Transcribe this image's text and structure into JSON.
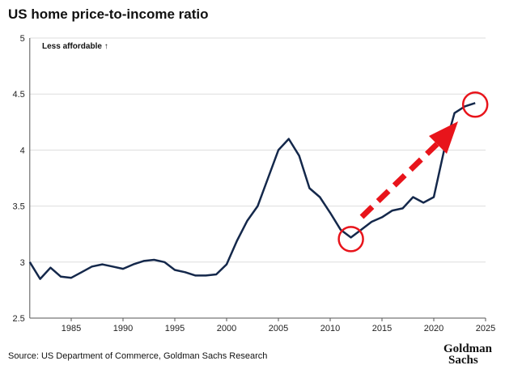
{
  "title": "US home price-to-income ratio",
  "source": "Source: US Department of Commerce, Goldman Sachs Research",
  "logo": {
    "line1": "Goldman",
    "line2": "Sachs"
  },
  "colors": {
    "line": "#14284b",
    "annotation": "#e8141b",
    "grid": "#dddddd"
  },
  "chart_data": {
    "type": "line",
    "title": "US home price-to-income ratio",
    "annotation": "Less affordable ↑",
    "xlim": [
      1981,
      2025
    ],
    "ylim": [
      2.5,
      5
    ],
    "xticks": [
      1985,
      1990,
      1995,
      2000,
      2005,
      2010,
      2015,
      2020,
      2025
    ],
    "yticks": [
      2.5,
      3,
      3.5,
      4,
      4.5,
      5
    ],
    "ytick_labels": [
      "2.5",
      "3",
      "3.5",
      "4",
      "4.5",
      "5"
    ],
    "grid": true,
    "x": [
      1981,
      1982,
      1983,
      1984,
      1985,
      1986,
      1987,
      1988,
      1989,
      1990,
      1991,
      1992,
      1993,
      1994,
      1995,
      1996,
      1997,
      1998,
      1999,
      2000,
      2001,
      2002,
      2003,
      2004,
      2005,
      2006,
      2007,
      2008,
      2009,
      2010,
      2011,
      2012,
      2013,
      2014,
      2015,
      2016,
      2017,
      2018,
      2019,
      2020,
      2021,
      2022,
      2023,
      2024
    ],
    "y": [
      3.0,
      2.85,
      2.95,
      2.87,
      2.86,
      2.91,
      2.96,
      2.98,
      2.96,
      2.94,
      2.98,
      3.01,
      3.02,
      3.0,
      2.93,
      2.91,
      2.88,
      2.88,
      2.89,
      2.98,
      3.19,
      3.37,
      3.5,
      3.75,
      4.0,
      4.1,
      3.95,
      3.66,
      3.58,
      3.44,
      3.29,
      3.22,
      3.29,
      3.36,
      3.4,
      3.46,
      3.48,
      3.58,
      3.53,
      3.58,
      4.0,
      4.33,
      4.39,
      4.42
    ],
    "highlights": [
      {
        "x": 2012,
        "y": 3.22
      },
      {
        "x": 2024,
        "y": 4.42
      }
    ]
  }
}
